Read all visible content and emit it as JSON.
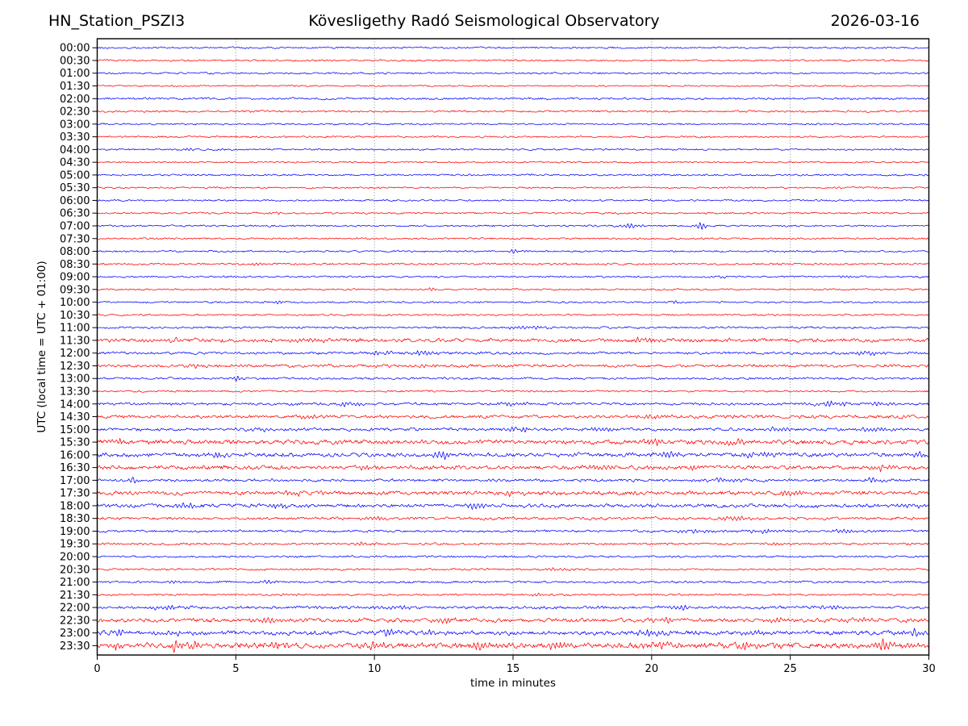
{
  "header": {
    "station": "HN_Station_PSZI3",
    "observatory": "Kövesligethy Radó Seismological Observatory",
    "date": "2026-03-16"
  },
  "chart_data": {
    "type": "line",
    "subtype": "helicorder-dayplot",
    "title": "HN_Station_PSZI3 — Kövesligethy Radó Seismological Observatory — 2026-03-16",
    "xlabel": "time in minutes",
    "ylabel": "UTC (local time = UTC + 01:00)",
    "x_range": [
      0,
      30
    ],
    "x_ticks": [
      0,
      5,
      10,
      15,
      20,
      25,
      30
    ],
    "x_tick_labels": [
      "0",
      "5",
      "10",
      "15",
      "20",
      "25",
      "30"
    ],
    "gridlines_minutes": [
      5,
      10,
      15,
      20,
      25
    ],
    "grid_on": true,
    "minutes_per_row": 30,
    "trace_colors": {
      "even_rows": "#0000ff",
      "odd_rows": "#ff0000"
    },
    "rows": [
      {
        "label": "00:00",
        "color": "#0000ff",
        "amp": 0.9,
        "bursts": []
      },
      {
        "label": "00:30",
        "color": "#ff0000",
        "amp": 0.9,
        "bursts": []
      },
      {
        "label": "01:00",
        "color": "#0000ff",
        "amp": 0.9,
        "bursts": []
      },
      {
        "label": "01:30",
        "color": "#ff0000",
        "amp": 0.8,
        "bursts": []
      },
      {
        "label": "02:00",
        "color": "#0000ff",
        "amp": 1.1,
        "bursts": []
      },
      {
        "label": "02:30",
        "color": "#ff0000",
        "amp": 1.0,
        "bursts": []
      },
      {
        "label": "03:00",
        "color": "#0000ff",
        "amp": 0.9,
        "bursts": []
      },
      {
        "label": "03:30",
        "color": "#ff0000",
        "amp": 0.9,
        "bursts": []
      },
      {
        "label": "04:00",
        "color": "#0000ff",
        "amp": 0.9,
        "bursts": [
          [
            3.3,
            1.8,
            0.25
          ]
        ]
      },
      {
        "label": "04:30",
        "color": "#ff0000",
        "amp": 0.8,
        "bursts": []
      },
      {
        "label": "05:00",
        "color": "#0000ff",
        "amp": 0.9,
        "bursts": []
      },
      {
        "label": "05:30",
        "color": "#ff0000",
        "amp": 0.9,
        "bursts": []
      },
      {
        "label": "06:00",
        "color": "#0000ff",
        "amp": 0.9,
        "bursts": []
      },
      {
        "label": "06:30",
        "color": "#ff0000",
        "amp": 0.9,
        "bursts": [
          [
            6.5,
            1.5,
            0.25
          ]
        ]
      },
      {
        "label": "07:00",
        "color": "#0000ff",
        "amp": 0.9,
        "bursts": [
          [
            19.2,
            3.4,
            0.35
          ],
          [
            21.8,
            4.5,
            0.2
          ]
        ]
      },
      {
        "label": "07:30",
        "color": "#ff0000",
        "amp": 0.9,
        "bursts": []
      },
      {
        "label": "08:00",
        "color": "#0000ff",
        "amp": 0.9,
        "bursts": [
          [
            15.1,
            2.5,
            0.22
          ]
        ]
      },
      {
        "label": "08:30",
        "color": "#ff0000",
        "amp": 1.0,
        "bursts": [
          [
            5.8,
            2.0,
            0.2
          ]
        ]
      },
      {
        "label": "09:00",
        "color": "#0000ff",
        "amp": 0.9,
        "bursts": [
          [
            22.4,
            1.5,
            0.3
          ],
          [
            27.0,
            1.5,
            0.3
          ]
        ]
      },
      {
        "label": "09:30",
        "color": "#ff0000",
        "amp": 0.9,
        "bursts": [
          [
            12.0,
            2.5,
            0.18
          ]
        ]
      },
      {
        "label": "10:00",
        "color": "#0000ff",
        "amp": 0.9,
        "bursts": [
          [
            6.5,
            1.6,
            0.3
          ],
          [
            20.8,
            1.4,
            0.3
          ]
        ]
      },
      {
        "label": "10:30",
        "color": "#ff0000",
        "amp": 0.9,
        "bursts": []
      },
      {
        "label": "11:00",
        "color": "#0000ff",
        "amp": 1.1,
        "bursts": [
          [
            15.5,
            1.8,
            0.8
          ]
        ]
      },
      {
        "label": "11:30",
        "color": "#ff0000",
        "amp": 1.9,
        "bursts": [
          [
            2.5,
            2.2,
            0.8
          ],
          [
            7.5,
            2.0,
            0.5
          ],
          [
            19.7,
            2.3,
            0.5
          ]
        ]
      },
      {
        "label": "12:00",
        "color": "#0000ff",
        "amp": 1.3,
        "bursts": [
          [
            10.3,
            2.8,
            0.5
          ],
          [
            11.8,
            3.2,
            0.4
          ],
          [
            27.8,
            2.4,
            0.5
          ],
          [
            29.4,
            2.0,
            0.3
          ]
        ]
      },
      {
        "label": "12:30",
        "color": "#ff0000",
        "amp": 1.5,
        "bursts": [
          [
            3.5,
            2.0,
            0.5
          ],
          [
            12.0,
            2.0,
            0.4
          ]
        ]
      },
      {
        "label": "13:00",
        "color": "#0000ff",
        "amp": 1.1,
        "bursts": [
          [
            5.0,
            2.8,
            0.2
          ]
        ]
      },
      {
        "label": "13:30",
        "color": "#ff0000",
        "amp": 0.9,
        "bursts": []
      },
      {
        "label": "14:00",
        "color": "#0000ff",
        "amp": 1.3,
        "bursts": [
          [
            9.0,
            3.3,
            0.3
          ],
          [
            15.0,
            2.3,
            0.5
          ],
          [
            26.5,
            2.8,
            0.6
          ],
          [
            28.2,
            2.2,
            0.4
          ]
        ]
      },
      {
        "label": "14:30",
        "color": "#ff0000",
        "amp": 1.6,
        "bursts": [
          [
            7.5,
            2.3,
            0.4
          ],
          [
            20.0,
            2.0,
            0.5
          ]
        ]
      },
      {
        "label": "15:00",
        "color": "#0000ff",
        "amp": 1.5,
        "bursts": [
          [
            5.8,
            2.2,
            0.4
          ],
          [
            15.2,
            2.8,
            0.4
          ],
          [
            18.2,
            2.8,
            0.4
          ],
          [
            24.6,
            2.8,
            0.4
          ],
          [
            28.0,
            2.4,
            0.5
          ]
        ]
      },
      {
        "label": "15:30",
        "color": "#ff0000",
        "amp": 2.2,
        "bursts": [
          [
            0.7,
            3.2,
            0.4
          ],
          [
            20.0,
            3.2,
            0.5
          ],
          [
            23.0,
            2.8,
            0.5
          ]
        ]
      },
      {
        "label": "16:00",
        "color": "#0000ff",
        "amp": 2.0,
        "bursts": [
          [
            4.2,
            2.8,
            0.5
          ],
          [
            12.4,
            4.5,
            0.35
          ],
          [
            20.5,
            3.2,
            0.5
          ],
          [
            24.0,
            3.2,
            0.6
          ],
          [
            29.6,
            3.0,
            0.4
          ]
        ]
      },
      {
        "label": "16:30",
        "color": "#ff0000",
        "amp": 2.0,
        "bursts": [
          [
            9.7,
            2.8,
            0.4
          ],
          [
            18.0,
            2.8,
            0.5
          ],
          [
            21.5,
            2.8,
            0.4
          ],
          [
            28.3,
            3.6,
            0.3
          ]
        ]
      },
      {
        "label": "17:00",
        "color": "#0000ff",
        "amp": 1.4,
        "bursts": [
          [
            1.3,
            3.6,
            0.22
          ],
          [
            22.5,
            2.2,
            0.8
          ],
          [
            28.0,
            2.6,
            0.4
          ]
        ]
      },
      {
        "label": "17:30",
        "color": "#ff0000",
        "amp": 2.0,
        "bursts": [
          [
            7.0,
            2.8,
            0.5
          ],
          [
            15.0,
            2.8,
            0.5
          ],
          [
            25.0,
            3.2,
            0.5
          ]
        ]
      },
      {
        "label": "18:00",
        "color": "#0000ff",
        "amp": 1.8,
        "bursts": [
          [
            3.2,
            3.6,
            0.4
          ],
          [
            6.6,
            2.8,
            0.4
          ],
          [
            13.7,
            3.8,
            0.3
          ],
          [
            29.4,
            2.8,
            0.4
          ]
        ]
      },
      {
        "label": "18:30",
        "color": "#ff0000",
        "amp": 1.4,
        "bursts": [
          [
            10.0,
            2.3,
            0.5
          ],
          [
            23.0,
            2.3,
            0.5
          ]
        ]
      },
      {
        "label": "19:00",
        "color": "#0000ff",
        "amp": 1.2,
        "bursts": [
          [
            21.5,
            2.4,
            0.6
          ],
          [
            24.0,
            2.4,
            0.6
          ],
          [
            27.0,
            2.0,
            0.5
          ]
        ]
      },
      {
        "label": "19:30",
        "color": "#ff0000",
        "amp": 1.1,
        "bursts": [
          [
            9.5,
            1.9,
            0.4
          ],
          [
            24.5,
            1.9,
            0.4
          ]
        ]
      },
      {
        "label": "20:00",
        "color": "#0000ff",
        "amp": 1.0,
        "bursts": []
      },
      {
        "label": "20:30",
        "color": "#ff0000",
        "amp": 1.0,
        "bursts": [
          [
            16.5,
            1.8,
            0.4
          ]
        ]
      },
      {
        "label": "21:00",
        "color": "#0000ff",
        "amp": 1.1,
        "bursts": [
          [
            2.8,
            2.3,
            0.3
          ],
          [
            6.3,
            2.0,
            0.3
          ]
        ]
      },
      {
        "label": "21:30",
        "color": "#ff0000",
        "amp": 1.0,
        "bursts": [
          [
            7.0,
            1.8,
            0.3
          ],
          [
            15.8,
            2.3,
            0.18
          ]
        ]
      },
      {
        "label": "22:00",
        "color": "#0000ff",
        "amp": 1.5,
        "bursts": [
          [
            2.5,
            2.3,
            0.5
          ],
          [
            11.0,
            2.0,
            0.5
          ],
          [
            21.0,
            2.4,
            0.5
          ],
          [
            26.5,
            2.4,
            0.5
          ]
        ]
      },
      {
        "label": "22:30",
        "color": "#ff0000",
        "amp": 2.0,
        "bursts": [
          [
            6.0,
            2.8,
            0.5
          ],
          [
            12.5,
            2.8,
            0.5
          ],
          [
            20.5,
            3.2,
            0.5
          ],
          [
            24.5,
            3.2,
            0.5
          ],
          [
            27.5,
            2.8,
            0.5
          ]
        ]
      },
      {
        "label": "23:00",
        "color": "#0000ff",
        "amp": 2.2,
        "bursts": [
          [
            0.8,
            3.2,
            0.4
          ],
          [
            3.0,
            2.8,
            0.5
          ],
          [
            10.5,
            3.2,
            0.5
          ],
          [
            12.0,
            2.8,
            0.4
          ],
          [
            20.0,
            3.6,
            0.5
          ],
          [
            24.0,
            3.2,
            0.5
          ],
          [
            29.5,
            3.2,
            0.3
          ]
        ]
      },
      {
        "label": "23:30",
        "color": "#ff0000",
        "amp": 2.8,
        "bursts": [
          [
            0.8,
            3.8,
            0.3
          ],
          [
            2.9,
            7.5,
            0.22
          ],
          [
            3.6,
            4.5,
            0.3
          ],
          [
            6.5,
            3.8,
            0.4
          ],
          [
            10.0,
            3.4,
            0.4
          ],
          [
            13.8,
            3.8,
            0.4
          ],
          [
            16.5,
            3.8,
            0.4
          ],
          [
            20.5,
            3.4,
            0.5
          ],
          [
            23.5,
            3.8,
            0.4
          ],
          [
            28.4,
            6.5,
            0.28
          ],
          [
            29.3,
            3.8,
            0.3
          ]
        ]
      }
    ]
  }
}
